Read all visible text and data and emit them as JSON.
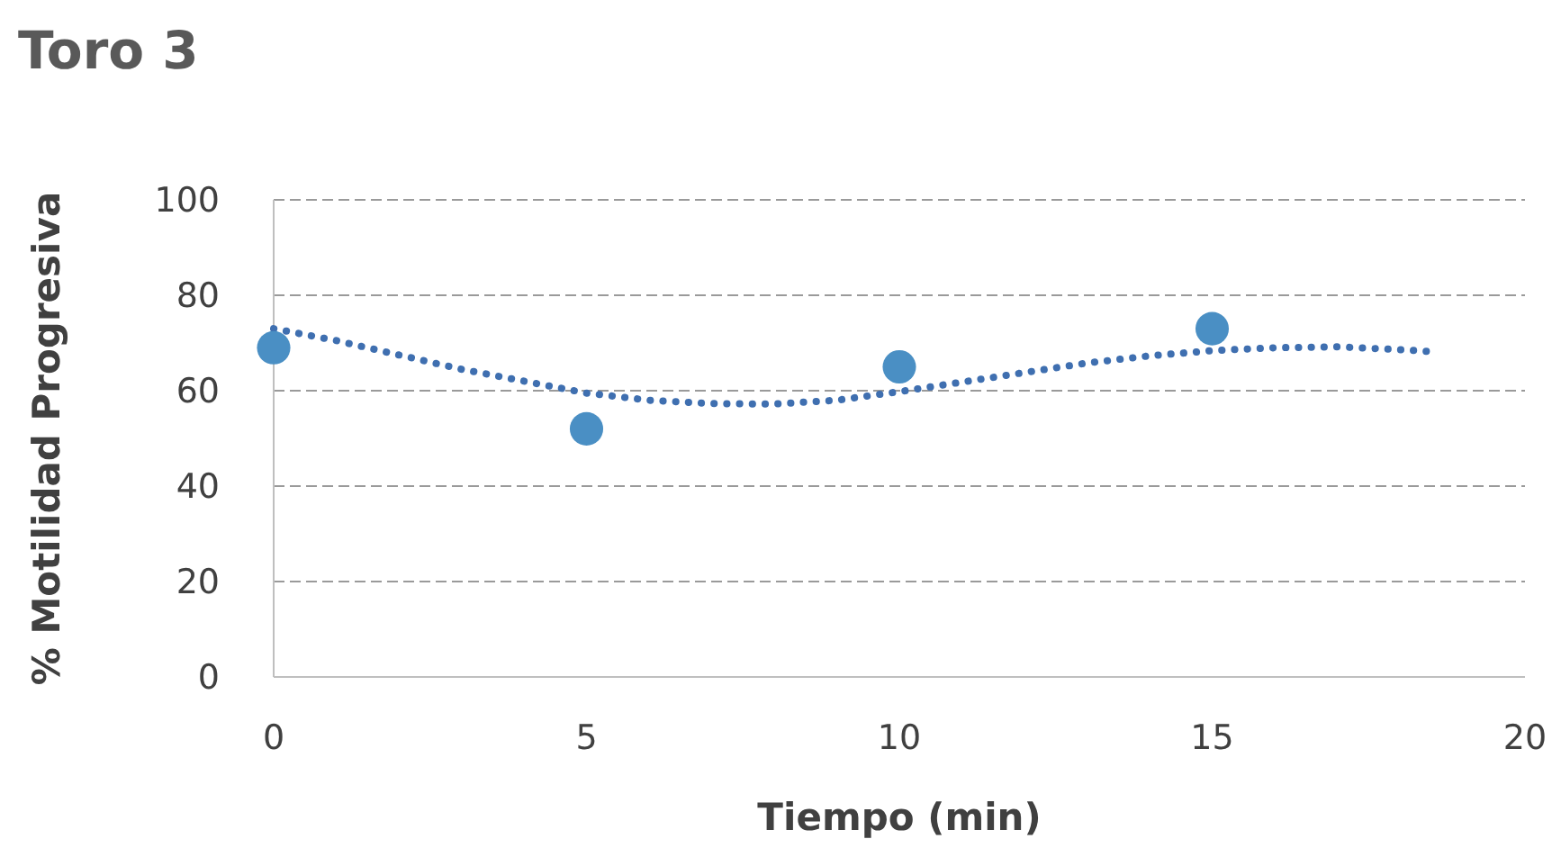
{
  "chart_data": {
    "type": "scatter",
    "title": "Toro 3",
    "xlabel": "Tiempo (min)",
    "ylabel": "% Motilidad Progresiva",
    "xlim": [
      0,
      20
    ],
    "xticks": [
      0,
      5,
      10,
      15,
      20
    ],
    "ylim": [
      0,
      100
    ],
    "yticks": [
      0,
      20,
      40,
      60,
      80,
      100
    ],
    "grid": "y",
    "series": [
      {
        "type": "line",
        "line_style": "dotted",
        "marker": "none",
        "color": "#3f6fb0",
        "x": [
          0,
          1,
          2,
          3,
          4,
          5,
          6,
          7,
          8,
          9,
          10,
          11,
          12,
          13,
          14,
          15,
          16,
          17,
          18,
          18.5
        ],
        "values": [
          73,
          70.5,
          67.5,
          64.5,
          62,
          59.5,
          58,
          57.3,
          57.2,
          58,
          59.8,
          61.8,
          63.8,
          65.8,
          67.3,
          68.4,
          69,
          69.2,
          68.6,
          68.2
        ]
      },
      {
        "marker": "circle",
        "color": "#4a8fc4",
        "x": [
          0,
          5,
          10,
          15
        ],
        "values": [
          69,
          52,
          65,
          73
        ]
      }
    ]
  }
}
